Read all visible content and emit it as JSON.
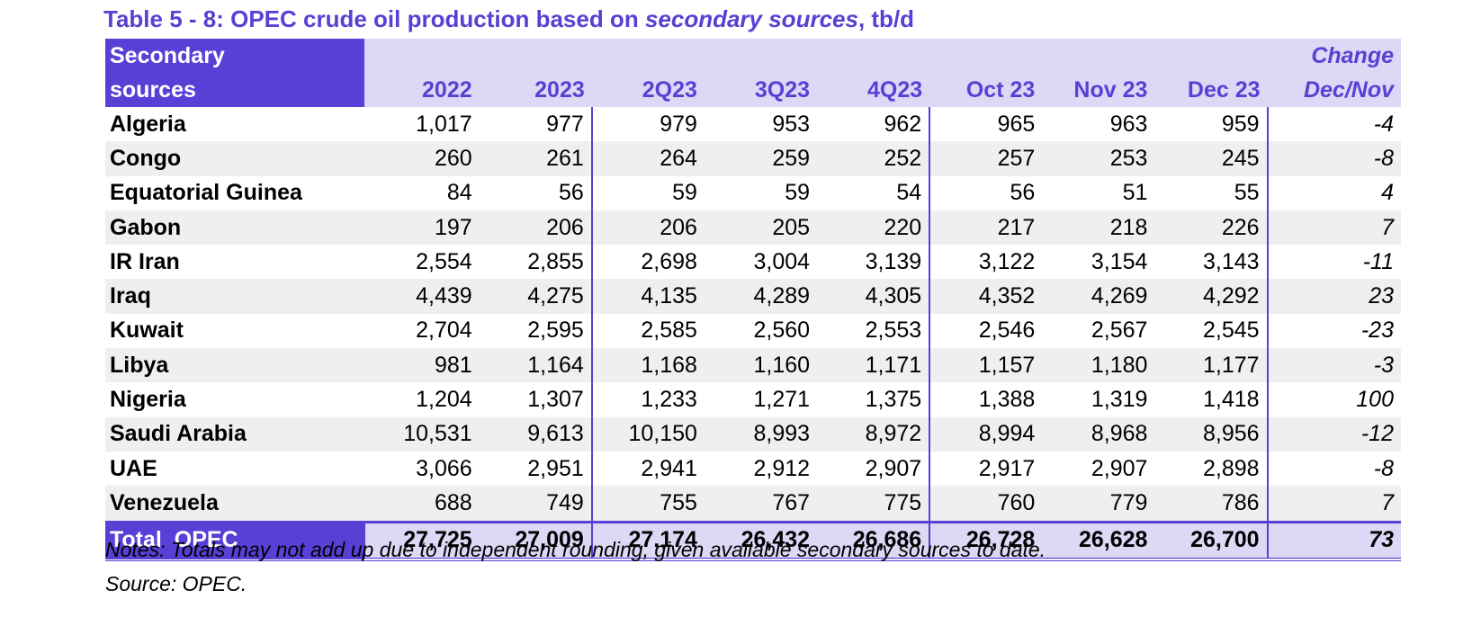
{
  "title": {
    "prefix": "Table 5 - 8: OPEC crude oil production based on ",
    "italic": "secondary sources",
    "suffix": ", tb/d"
  },
  "header": {
    "label_line1": "Secondary",
    "label_line2": "sources",
    "columns": [
      "2022",
      "2023",
      "2Q23",
      "3Q23",
      "4Q23",
      "Oct 23",
      "Nov 23",
      "Dec 23"
    ],
    "change_line1": "Change",
    "change_line2": "Dec/Nov"
  },
  "rows": [
    {
      "country": "Algeria",
      "values": [
        "1,017",
        "977",
        "979",
        "953",
        "962",
        "965",
        "963",
        "959"
      ],
      "change": "-4"
    },
    {
      "country": "Congo",
      "values": [
        "260",
        "261",
        "264",
        "259",
        "252",
        "257",
        "253",
        "245"
      ],
      "change": "-8"
    },
    {
      "country": "Equatorial Guinea",
      "values": [
        "84",
        "56",
        "59",
        "59",
        "54",
        "56",
        "51",
        "55"
      ],
      "change": "4"
    },
    {
      "country": "Gabon",
      "values": [
        "197",
        "206",
        "206",
        "205",
        "220",
        "217",
        "218",
        "226"
      ],
      "change": "7"
    },
    {
      "country": "IR Iran",
      "values": [
        "2,554",
        "2,855",
        "2,698",
        "3,004",
        "3,139",
        "3,122",
        "3,154",
        "3,143"
      ],
      "change": "-11"
    },
    {
      "country": "Iraq",
      "values": [
        "4,439",
        "4,275",
        "4,135",
        "4,289",
        "4,305",
        "4,352",
        "4,269",
        "4,292"
      ],
      "change": "23"
    },
    {
      "country": "Kuwait",
      "values": [
        "2,704",
        "2,595",
        "2,585",
        "2,560",
        "2,553",
        "2,546",
        "2,567",
        "2,545"
      ],
      "change": "-23"
    },
    {
      "country": "Libya",
      "values": [
        "981",
        "1,164",
        "1,168",
        "1,160",
        "1,171",
        "1,157",
        "1,180",
        "1,177"
      ],
      "change": "-3"
    },
    {
      "country": "Nigeria",
      "values": [
        "1,204",
        "1,307",
        "1,233",
        "1,271",
        "1,375",
        "1,388",
        "1,319",
        "1,418"
      ],
      "change": "100"
    },
    {
      "country": "Saudi Arabia",
      "values": [
        "10,531",
        "9,613",
        "10,150",
        "8,993",
        "8,972",
        "8,994",
        "8,968",
        "8,956"
      ],
      "change": "-12"
    },
    {
      "country": "UAE",
      "values": [
        "3,066",
        "2,951",
        "2,941",
        "2,912",
        "2,907",
        "2,917",
        "2,907",
        "2,898"
      ],
      "change": "-8"
    },
    {
      "country": "Venezuela",
      "values": [
        "688",
        "749",
        "755",
        "767",
        "775",
        "760",
        "779",
        "786"
      ],
      "change": "7"
    }
  ],
  "total": {
    "label": "Total  OPEC",
    "values": [
      "27,725",
      "27,009",
      "27,174",
      "26,432",
      "26,686",
      "26,728",
      "26,628",
      "26,700"
    ],
    "change": "73"
  },
  "notes": "Notes: Totals may not add up due to independent rounding, given available secondary sources to date.",
  "source": "Source: OPEC.",
  "colors": {
    "accent": "#5a3fd6",
    "header_fill": "#dcd8f5",
    "row_shade": "#efefef"
  }
}
